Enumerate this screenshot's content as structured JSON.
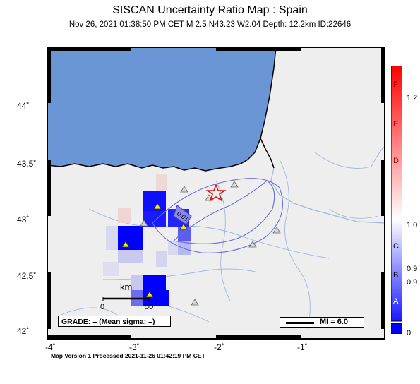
{
  "header": {
    "title": "SISCAN Uncertainty Ratio Map : Spain",
    "subtitle": "Nov 26, 2021 01:38:50 PM CET   M 2.5    N43.23 W2.04   Depth: 12.2km   ID:22646"
  },
  "axes": {
    "lat_labels": [
      "44˚",
      "43.5˚",
      "43˚",
      "42.5˚",
      "42˚"
    ],
    "lon_labels": [
      "-4˚",
      "-3˚",
      "-2˚",
      "-1˚"
    ]
  },
  "map": {
    "contour_label": "0.01",
    "scale": {
      "unit": "km",
      "start": "0",
      "end": "50"
    },
    "grade_text": "GRADE: – (Mean sigma: –)",
    "mi_legend": "MI = 6.0",
    "colors": {
      "sea": "#6b96d6",
      "land": "#eeeeee",
      "high": "#0000ff",
      "epicenter": "#e01010"
    }
  },
  "colorbar": {
    "letters": [
      "F",
      "E",
      "D",
      "C",
      "B",
      "A"
    ],
    "ticks": [
      "1.2",
      "1.0",
      "0.9",
      "0.9",
      "0"
    ]
  },
  "footer": {
    "note": "Map Version 1 Processed 2021-11-26 01:42:19 PM CET"
  }
}
